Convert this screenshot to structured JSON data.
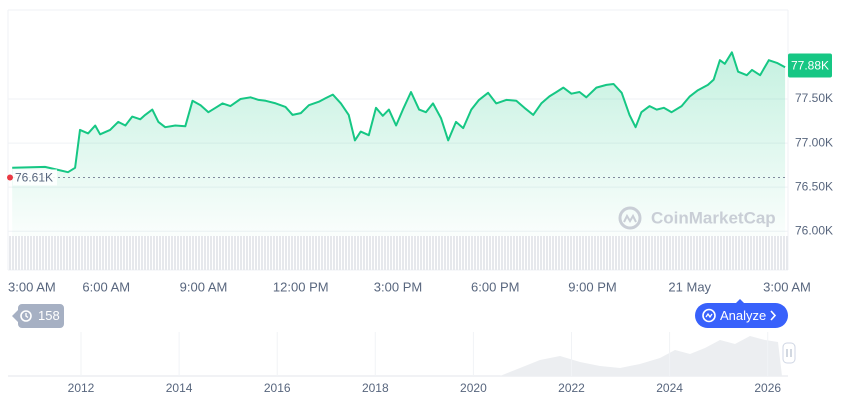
{
  "chart_data": {
    "type": "line",
    "color": "#16c784",
    "x": [
      0.1,
      1.11,
      1.58,
      1.82,
      2.04,
      2.19,
      2.44,
      2.66,
      2.81,
      3.12,
      3.37,
      3.59,
      3.8,
      4.05,
      4.2,
      4.42,
      4.61,
      4.82,
      5.13,
      5.44,
      5.66,
      5.91,
      6.15,
      6.37,
      6.59,
      6.83,
      7.14,
      7.45,
      7.7,
      7.92,
      8.23,
      8.53,
      8.75,
      9.0,
      9.25,
      9.56,
      9.77,
      9.99,
      10.24,
      10.48,
      10.67,
      10.85,
      11.1,
      11.32,
      11.53,
      11.72,
      11.94,
      12.15,
      12.4,
      12.65,
      12.86,
      13.08,
      13.33,
      13.55,
      13.79,
      14.01,
      14.26,
      14.5,
      14.78,
      15.03,
      15.34,
      15.65,
      15.9,
      16.17,
      16.42,
      16.67,
      16.89,
      17.1,
      17.35,
      17.6,
      17.81,
      18.12,
      18.43,
      18.65,
      18.9,
      19.14,
      19.33,
      19.51,
      19.76,
      19.98,
      20.2,
      20.44,
      20.75,
      21.0,
      21.25,
      21.56,
      21.74,
      21.93,
      22.08,
      22.3,
      22.49,
      22.76,
      22.92,
      23.17,
      23.44,
      23.69,
      23.94
    ],
    "values": [
      76.72,
      76.73,
      76.69,
      76.67,
      76.72,
      77.15,
      77.11,
      77.2,
      77.1,
      77.15,
      77.24,
      77.2,
      77.3,
      77.27,
      77.32,
      77.38,
      77.24,
      77.18,
      77.2,
      77.19,
      77.48,
      77.43,
      77.35,
      77.4,
      77.45,
      77.42,
      77.5,
      77.52,
      77.49,
      77.48,
      77.45,
      77.41,
      77.32,
      77.34,
      77.43,
      77.47,
      77.51,
      77.55,
      77.45,
      77.32,
      77.03,
      77.13,
      77.09,
      77.4,
      77.31,
      77.38,
      77.2,
      77.38,
      77.58,
      77.38,
      77.35,
      77.45,
      77.28,
      77.03,
      77.24,
      77.17,
      77.38,
      77.49,
      77.57,
      77.45,
      77.49,
      77.48,
      77.4,
      77.32,
      77.45,
      77.53,
      77.58,
      77.63,
      77.56,
      77.58,
      77.52,
      77.63,
      77.66,
      77.67,
      77.57,
      77.32,
      77.18,
      77.35,
      77.42,
      77.38,
      77.4,
      77.35,
      77.42,
      77.53,
      77.6,
      77.66,
      77.72,
      77.94,
      77.9,
      78.03,
      77.81,
      77.77,
      77.83,
      77.77,
      77.94,
      77.91,
      77.86
    ],
    "xlim": [
      0,
      24
    ],
    "ylim": [
      75.56,
      78.51
    ],
    "xticks": [
      {
        "value": 0,
        "label": "3:00 AM"
      },
      {
        "value": 3,
        "label": "6:00 AM"
      },
      {
        "value": 6,
        "label": "9:00 AM"
      },
      {
        "value": 9,
        "label": "12:00 PM"
      },
      {
        "value": 12,
        "label": "3:00 PM"
      },
      {
        "value": 15,
        "label": "6:00 PM"
      },
      {
        "value": 18,
        "label": "9:00 PM"
      },
      {
        "value": 21,
        "label": "21 May"
      },
      {
        "value": 24,
        "label": "3:00 AM"
      }
    ],
    "yticks": [
      {
        "value": 76.0,
        "label": "76.00K"
      },
      {
        "value": 76.5,
        "label": "76.50K"
      },
      {
        "value": 77.0,
        "label": "77.00K"
      },
      {
        "value": 77.5,
        "label": "77.50K"
      }
    ],
    "grid": true,
    "reference": {
      "value": 76.61,
      "label": "76.61K"
    },
    "last": {
      "value": 77.88,
      "label": "77.88K"
    }
  },
  "watermark": "CoinMarketCap",
  "history_badge": "158",
  "analyze_button": "Analyze",
  "navigator_years": [
    "2012",
    "2014",
    "2016",
    "2018",
    "2020",
    "2022",
    "2024",
    "2026"
  ]
}
